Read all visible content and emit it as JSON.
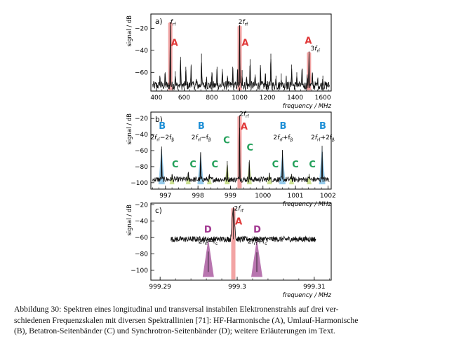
{
  "colors": {
    "A": "#e03838",
    "B": "#1e8fd6",
    "C": "#23a05a",
    "D": "#a0348f",
    "A_fill": "#f19a9a",
    "B_fill": "#8cc6ea",
    "C_fill": "#c7de86",
    "D_fill": "#b066a6"
  },
  "chart_data": [
    {
      "id": "a",
      "type": "line",
      "panel_label": "a)",
      "xlabel": "frequency / MHz",
      "ylabel": "signal / dB",
      "xlim": [
        360,
        1660
      ],
      "ylim": [
        -77,
        -7
      ],
      "xticks": [
        400,
        600,
        800,
        1000,
        1200,
        1400,
        1600
      ],
      "yticks": [
        -20,
        -40,
        -60
      ],
      "baseline": -72,
      "noise": 4,
      "peaks": [
        {
          "x": 500,
          "y": -14
        },
        {
          "x": 1000,
          "y": -17
        },
        {
          "x": 1500,
          "y": -41
        },
        {
          "x": 425,
          "y": -63
        },
        {
          "x": 463,
          "y": -60
        },
        {
          "x": 536,
          "y": -59
        },
        {
          "x": 574,
          "y": -46
        },
        {
          "x": 612,
          "y": -55
        },
        {
          "x": 650,
          "y": -53
        },
        {
          "x": 688,
          "y": -66
        },
        {
          "x": 725,
          "y": -43
        },
        {
          "x": 762,
          "y": -64
        },
        {
          "x": 800,
          "y": -60
        },
        {
          "x": 837,
          "y": -55
        },
        {
          "x": 875,
          "y": -57
        },
        {
          "x": 912,
          "y": -63
        },
        {
          "x": 950,
          "y": -55
        },
        {
          "x": 985,
          "y": -58
        },
        {
          "x": 1018,
          "y": -58
        },
        {
          "x": 1050,
          "y": -64
        },
        {
          "x": 1075,
          "y": -48
        },
        {
          "x": 1112,
          "y": -62
        },
        {
          "x": 1150,
          "y": -56
        },
        {
          "x": 1185,
          "y": -61
        },
        {
          "x": 1225,
          "y": -43
        },
        {
          "x": 1262,
          "y": -63
        },
        {
          "x": 1300,
          "y": -61
        },
        {
          "x": 1336,
          "y": -63
        },
        {
          "x": 1375,
          "y": -53
        },
        {
          "x": 1412,
          "y": -60
        },
        {
          "x": 1450,
          "y": -57
        },
        {
          "x": 1487,
          "y": -62
        },
        {
          "x": 1525,
          "y": -61
        },
        {
          "x": 1562,
          "y": -66
        },
        {
          "x": 1600,
          "y": -63
        }
      ],
      "highlights": [
        {
          "x": 500,
          "type": "A"
        },
        {
          "x": 1000,
          "type": "A"
        },
        {
          "x": 1500,
          "type": "A"
        }
      ],
      "letters": [
        {
          "text": "A",
          "type": "A",
          "x": 530,
          "y": -36
        },
        {
          "text": "A",
          "type": "A",
          "x": 1040,
          "y": -36
        },
        {
          "text": "A",
          "type": "A",
          "x": 1495,
          "y": -34
        }
      ],
      "labels": [
        {
          "main": "f",
          "sub": "rf",
          "x": 520,
          "y": -16
        },
        {
          "pre": "2",
          "main": "f",
          "sub": "rf",
          "x": 1025,
          "y": -16
        },
        {
          "pre": "3",
          "main": "f",
          "sub": "rf",
          "x": 1545,
          "y": -40
        }
      ]
    },
    {
      "id": "b",
      "type": "line",
      "panel_label": "b)",
      "xlabel": "frequency / MHz",
      "ylabel": "signal / dB",
      "xlim": [
        996.55,
        1002.1
      ],
      "ylim": [
        -108,
        -12
      ],
      "xticks": [
        997,
        998,
        999,
        1000,
        1001,
        1002
      ],
      "yticks": [
        -20,
        -40,
        -60,
        -80,
        -100
      ],
      "baseline": -96,
      "noise": 3.5,
      "peaks": [
        {
          "x": 999.28,
          "y": -16
        },
        {
          "x": 996.88,
          "y": -55
        },
        {
          "x": 998.08,
          "y": -62
        },
        {
          "x": 1000.6,
          "y": -60
        },
        {
          "x": 1001.82,
          "y": -54
        },
        {
          "x": 997.2,
          "y": -90
        },
        {
          "x": 997.7,
          "y": -88
        },
        {
          "x": 998.35,
          "y": -91
        },
        {
          "x": 998.9,
          "y": -73
        },
        {
          "x": 999.58,
          "y": -72
        },
        {
          "x": 1000.2,
          "y": -88
        },
        {
          "x": 1000.88,
          "y": -89
        },
        {
          "x": 1001.42,
          "y": -89
        }
      ],
      "highlights": [
        {
          "x": 999.28,
          "type": "A"
        },
        {
          "x": 996.88,
          "type": "B"
        },
        {
          "x": 998.08,
          "type": "B"
        },
        {
          "x": 1000.6,
          "type": "B"
        },
        {
          "x": 1001.82,
          "type": "B"
        },
        {
          "x": 997.2,
          "type": "C"
        },
        {
          "x": 997.7,
          "type": "C"
        },
        {
          "x": 998.35,
          "type": "C"
        },
        {
          "x": 998.9,
          "type": "C"
        },
        {
          "x": 999.58,
          "type": "C"
        },
        {
          "x": 1000.2,
          "type": "C"
        },
        {
          "x": 1000.88,
          "type": "C"
        },
        {
          "x": 1001.42,
          "type": "C"
        }
      ],
      "letters": [
        {
          "text": "A",
          "type": "A",
          "x": 999.42,
          "y": -34
        },
        {
          "text": "B",
          "type": "B",
          "x": 996.9,
          "y": -33
        },
        {
          "text": "B",
          "type": "B",
          "x": 998.1,
          "y": -33
        },
        {
          "text": "B",
          "type": "B",
          "x": 1000.62,
          "y": -33
        },
        {
          "text": "B",
          "type": "B",
          "x": 1001.84,
          "y": -33
        },
        {
          "text": "C",
          "type": "C",
          "x": 998.88,
          "y": -51
        },
        {
          "text": "C",
          "type": "C",
          "x": 999.6,
          "y": -60
        },
        {
          "text": "C",
          "type": "C",
          "x": 997.3,
          "y": -81
        },
        {
          "text": "C",
          "type": "C",
          "x": 997.85,
          "y": -81
        },
        {
          "text": "C",
          "type": "C",
          "x": 998.52,
          "y": -81
        },
        {
          "text": "C",
          "type": "C",
          "x": 1000.38,
          "y": -81
        },
        {
          "text": "C",
          "type": "C",
          "x": 1001.0,
          "y": -81
        },
        {
          "text": "C",
          "type": "C",
          "x": 1001.52,
          "y": -81
        }
      ],
      "labels": [
        {
          "pre": "2",
          "main": "f",
          "sub": "rf",
          "x": 999.42,
          "y": -17
        },
        {
          "pre": "2",
          "main": "f",
          "sub": "rf",
          "post": "−2f",
          "postsub": "β",
          "x": 996.9,
          "y": -46
        },
        {
          "pre": "2",
          "main": "f",
          "sub": "rf",
          "post": "−f",
          "postsub": "β",
          "x": 998.1,
          "y": -46
        },
        {
          "pre": "2",
          "main": "f",
          "sub": "rf",
          "post": "+f",
          "postsub": "β",
          "x": 1000.62,
          "y": -46
        },
        {
          "pre": "2",
          "main": "f",
          "sub": "rf",
          "post": "+2f",
          "postsub": "β",
          "x": 1001.84,
          "y": -46
        }
      ]
    },
    {
      "id": "c",
      "type": "line",
      "panel_label": "c)",
      "xlabel": "frequency / MHz",
      "ylabel": "signal / dB",
      "xlim": [
        999.2888,
        999.3122
      ],
      "ylim": [
        -112,
        -18
      ],
      "xticks": [
        999.29,
        999.3,
        999.31
      ],
      "xticklabels": [
        "999.29",
        "999.3",
        "999.31"
      ],
      "yticks": [
        -20,
        -40,
        -60,
        -80,
        -100
      ],
      "xmin_data": 999.2914,
      "xmax_data": 999.3102,
      "baseline": -102,
      "noise": 3.5,
      "peaks": [
        {
          "x": 999.29625,
          "y": -77,
          "w": 0.0006
        },
        {
          "x": 999.30255,
          "y": -78,
          "w": 0.0006
        }
      ],
      "cusp": {
        "x": 999.2995,
        "y": -23,
        "wing": 0.0026,
        "wing_y": -62
      },
      "highlights": [
        {
          "x": 999.2995,
          "type": "A"
        },
        {
          "x": 999.29625,
          "type": "D"
        },
        {
          "x": 999.30255,
          "type": "D"
        }
      ],
      "letters": [
        {
          "text": "A",
          "type": "A",
          "x": 999.3002,
          "y": -44
        },
        {
          "text": "D",
          "type": "D",
          "x": 999.2962,
          "y": -54
        },
        {
          "text": "D",
          "type": "D",
          "x": 999.3026,
          "y": -54
        }
      ],
      "labels": [
        {
          "pre": "2",
          "main": "f",
          "sub": "rf",
          "x": 999.3002,
          "y": -27
        },
        {
          "pre": "2",
          "main": "f",
          "sub": "rf",
          "post": "−f",
          "postsub": "s",
          "x": 999.2962,
          "y": -67
        },
        {
          "pre": "2",
          "main": "f",
          "sub": "rf",
          "post": "+f",
          "postsub": "s",
          "x": 999.3026,
          "y": -67
        }
      ]
    }
  ],
  "caption": {
    "label": "Abbildung 30:",
    "line1": "Spektren eines longitudinal und transversal instabilen Elektronenstrahls auf drei ver-",
    "line2": "schiedenen Frequenzskalen mit diversen Spektrallinien [71]: HF-Harmonische (A), Umlauf-Harmonische",
    "line3": "(B), Betatron-Seitenbänder (C) und Synchrotron-Seitenbänder (D); weitere Erläuterungen im Text."
  }
}
